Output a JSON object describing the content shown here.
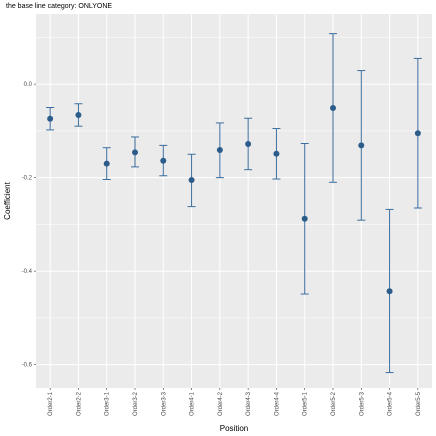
{
  "chart_data": {
    "type": "scatter",
    "subtitle": "the base line category: ONLYONE",
    "xlabel": "Position",
    "ylabel": "Coefficient",
    "categories": [
      "Order2-1",
      "Order2-2",
      "Order3-1",
      "Order3-2",
      "Order3-3",
      "Order4-1",
      "Order4-2",
      "Order4-3",
      "Order4-4",
      "Order5-1",
      "Order5-2",
      "Order5-3",
      "Order5-4",
      "Order5-5"
    ],
    "estimate": [
      -0.074,
      -0.066,
      -0.17,
      -0.146,
      -0.164,
      -0.205,
      -0.141,
      -0.128,
      -0.149,
      -0.288,
      -0.051,
      -0.131,
      -0.443,
      -0.105
    ],
    "lower": [
      -0.098,
      -0.09,
      -0.204,
      -0.177,
      -0.196,
      -0.262,
      -0.2,
      -0.183,
      -0.203,
      -0.449,
      -0.21,
      -0.291,
      -0.617,
      -0.265
    ],
    "upper": [
      -0.05,
      -0.042,
      -0.136,
      -0.113,
      -0.131,
      -0.15,
      -0.083,
      -0.073,
      -0.095,
      -0.127,
      0.108,
      0.029,
      -0.268,
      0.055
    ],
    "yticks": [
      0.0,
      -0.2,
      -0.4,
      -0.6
    ],
    "ytick_labels": [
      "0.0",
      "-0.2",
      "-0.4",
      "-0.6"
    ],
    "ylim": [
      -0.65,
      0.15
    ],
    "grid": true,
    "colors": {
      "point": "#2c5d8a",
      "errorbar": "#3b6e9e",
      "panel": "#ebebeb",
      "grid": "#ffffff"
    }
  }
}
